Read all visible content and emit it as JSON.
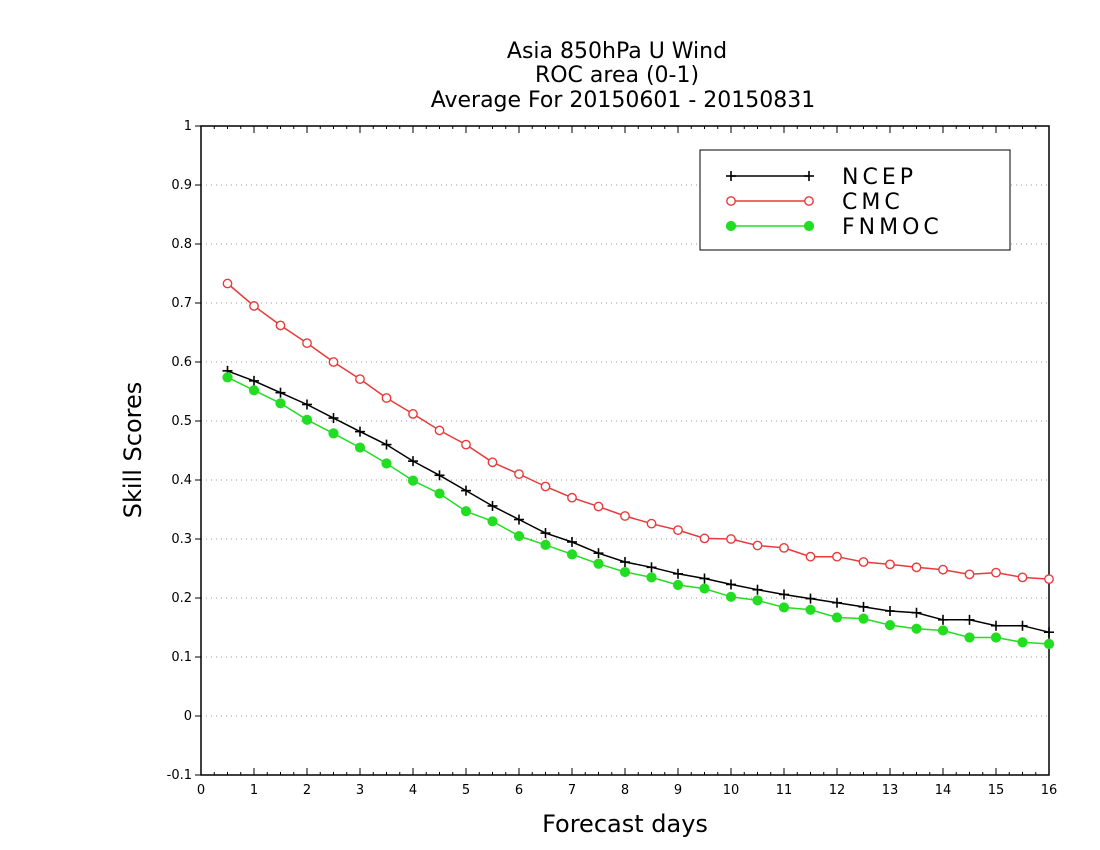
{
  "chart_data": {
    "type": "line",
    "title": [
      "Asia 850hPa U Wind",
      "ROC area (0-1)",
      "Average For 20150601 - 20150831"
    ],
    "xlabel": "Forecast days",
    "ylabel": "Skill Scores",
    "xlim": [
      0,
      16
    ],
    "ylim": [
      -0.1,
      1
    ],
    "xticks": [
      "0",
      "1",
      "2",
      "3",
      "4",
      "5",
      "6",
      "7",
      "8",
      "9",
      "10",
      "11",
      "12",
      "13",
      "14",
      "15",
      "16"
    ],
    "yticks": [
      "-0.1",
      "0",
      "0.1",
      "0.2",
      "0.3",
      "0.4",
      "0.5",
      "0.6",
      "0.7",
      "0.8",
      "0.9",
      "1"
    ],
    "grid": true,
    "legend_position": "top-right",
    "x": [
      0.5,
      1,
      1.5,
      2,
      2.5,
      3,
      3.5,
      4,
      4.5,
      5,
      5.5,
      6,
      6.5,
      7,
      7.5,
      8,
      8.5,
      9,
      9.5,
      10,
      10.5,
      11,
      11.5,
      12,
      12.5,
      13,
      13.5,
      14,
      14.5,
      15,
      15.5,
      16
    ],
    "series": [
      {
        "name": "NCEP",
        "color": "#000000",
        "marker": "plus",
        "values": [
          0.585,
          0.568,
          0.548,
          0.528,
          0.505,
          0.482,
          0.46,
          0.432,
          0.408,
          0.382,
          0.356,
          0.333,
          0.31,
          0.295,
          0.276,
          0.261,
          0.252,
          0.241,
          0.233,
          0.223,
          0.214,
          0.206,
          0.199,
          0.192,
          0.185,
          0.178,
          0.175,
          0.163,
          0.163,
          0.153,
          0.153,
          0.142
        ]
      },
      {
        "name": "CMC",
        "color": "#e83a3a",
        "marker": "open-circle",
        "values": [
          0.733,
          0.695,
          0.662,
          0.632,
          0.6,
          0.571,
          0.539,
          0.512,
          0.484,
          0.46,
          0.43,
          0.41,
          0.389,
          0.37,
          0.355,
          0.339,
          0.326,
          0.315,
          0.301,
          0.3,
          0.289,
          0.285,
          0.27,
          0.27,
          0.261,
          0.257,
          0.252,
          0.248,
          0.24,
          0.243,
          0.235,
          0.232
        ]
      },
      {
        "name": "FNMOC",
        "color": "#22dd22",
        "marker": "filled-circle",
        "values": [
          0.574,
          0.552,
          0.53,
          0.502,
          0.479,
          0.455,
          0.428,
          0.399,
          0.377,
          0.347,
          0.33,
          0.305,
          0.29,
          0.274,
          0.258,
          0.244,
          0.235,
          0.222,
          0.216,
          0.202,
          0.196,
          0.184,
          0.18,
          0.167,
          0.165,
          0.154,
          0.148,
          0.145,
          0.133,
          0.133,
          0.125,
          0.122
        ]
      }
    ]
  }
}
